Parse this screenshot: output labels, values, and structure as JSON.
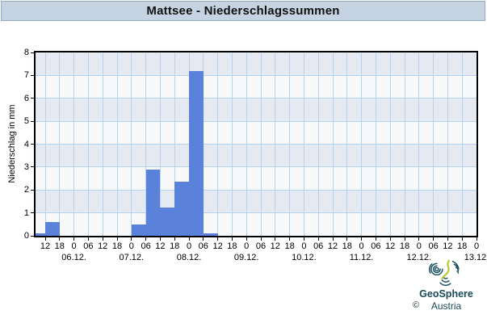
{
  "title_bar": {
    "title": "Mattsee - Niederschlagssummen"
  },
  "chart_data": {
    "type": "bar",
    "title": "Mattsee - Niederschlagssummen",
    "ylabel": "Niederschlag in mm",
    "ylim": [
      0,
      8
    ],
    "ytick_labels": [
      "0",
      "1",
      "2",
      "3",
      "4",
      "5",
      "6",
      "7",
      "8"
    ],
    "x_tick_labels": [
      "12",
      "18",
      "0",
      "06",
      "12",
      "18",
      "0",
      "06",
      "12",
      "18",
      "0",
      "06",
      "12",
      "18",
      "0",
      "06",
      "12",
      "18",
      "0",
      "06",
      "12",
      "18",
      "0",
      "06",
      "12",
      "18",
      "0",
      "06",
      "12",
      "18",
      "0"
    ],
    "date_ticks": [
      {
        "label": "06.12.",
        "tick": 2
      },
      {
        "label": "07.12.",
        "tick": 6
      },
      {
        "label": "08.12.",
        "tick": 10
      },
      {
        "label": "09.12.",
        "tick": 14
      },
      {
        "label": "10.12.",
        "tick": 18
      },
      {
        "label": "11.12.",
        "tick": 22
      },
      {
        "label": "12.12.",
        "tick": 26
      },
      {
        "label": "13.12.",
        "tick": 30
      }
    ],
    "bars": [
      {
        "from_tick": -1,
        "to_tick": 0,
        "value": 0.1
      },
      {
        "from_tick": 0,
        "to_tick": 1,
        "value": 0.6
      },
      {
        "from_tick": 6,
        "to_tick": 7,
        "value": 0.5
      },
      {
        "from_tick": 7,
        "to_tick": 8,
        "value": 2.9
      },
      {
        "from_tick": 8,
        "to_tick": 9,
        "value": 1.25
      },
      {
        "from_tick": 9,
        "to_tick": 10,
        "value": 2.35
      },
      {
        "from_tick": 10,
        "to_tick": 11,
        "value": 7.2
      },
      {
        "from_tick": 11,
        "to_tick": 12,
        "value": 0.1
      }
    ],
    "grid": true
  },
  "footer": {
    "brand_line1": "GeoSphere",
    "brand_line2": "Austria",
    "copyright": "©"
  },
  "colors": {
    "bar": "#5b82da",
    "grid": "#b5d3f0",
    "band_dark": "#e5e9f2",
    "band_light": "#f7f8fa",
    "title_bg": "#c6d3e2",
    "title_border": "#93aac2",
    "axis": "#000000",
    "brand_teal": "#1d5262",
    "brand_green": "#b9cc35"
  }
}
